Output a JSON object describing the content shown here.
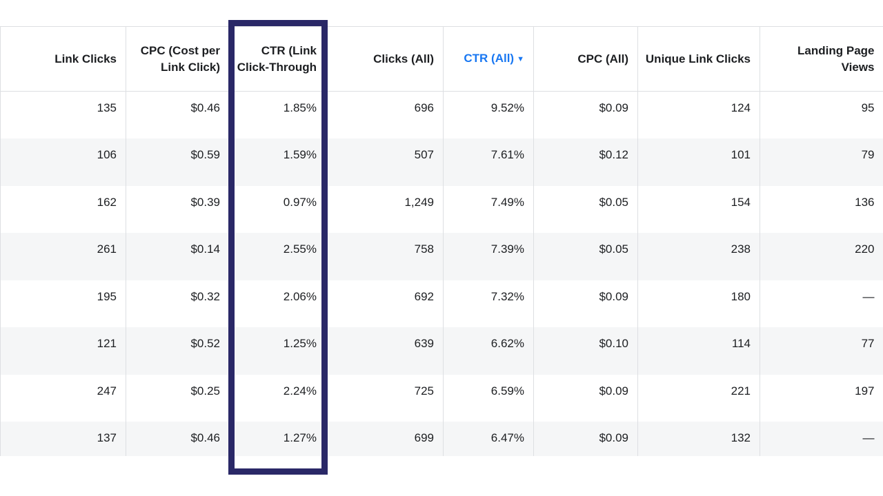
{
  "table": {
    "columns": [
      {
        "label": "Link Clicks"
      },
      {
        "label": "CPC (Cost per Link Click)"
      },
      {
        "label": "CTR (Link Click-Through"
      },
      {
        "label": "Clicks (All)"
      },
      {
        "label": "CTR (All)",
        "sorted": true,
        "sort_icon": "caret-down-icon"
      },
      {
        "label": "CPC (All)"
      },
      {
        "label": "Unique Link Clicks"
      },
      {
        "label": "Landing Page Views"
      }
    ],
    "rows": [
      [
        "135",
        "$0.46",
        "1.85%",
        "696",
        "9.52%",
        "$0.09",
        "124",
        "95"
      ],
      [
        "106",
        "$0.59",
        "1.59%",
        "507",
        "7.61%",
        "$0.12",
        "101",
        "79"
      ],
      [
        "162",
        "$0.39",
        "0.97%",
        "1,249",
        "7.49%",
        "$0.05",
        "154",
        "136"
      ],
      [
        "261",
        "$0.14",
        "2.55%",
        "758",
        "7.39%",
        "$0.05",
        "238",
        "220"
      ],
      [
        "195",
        "$0.32",
        "2.06%",
        "692",
        "7.32%",
        "$0.09",
        "180",
        "—"
      ],
      [
        "121",
        "$0.52",
        "1.25%",
        "639",
        "6.62%",
        "$0.10",
        "114",
        "77"
      ],
      [
        "247",
        "$0.25",
        "2.24%",
        "725",
        "6.59%",
        "$0.09",
        "221",
        "197"
      ],
      [
        "137",
        "$0.46",
        "1.27%",
        "699",
        "6.47%",
        "$0.09",
        "132",
        "—"
      ]
    ]
  },
  "colors": {
    "highlight_border": "#2a2867",
    "sorted_header": "#1877f2",
    "alt_row": "#f5f6f7",
    "grid": "#dddfe2"
  }
}
